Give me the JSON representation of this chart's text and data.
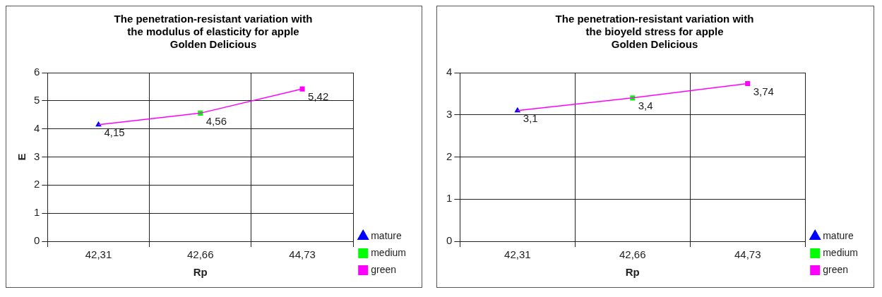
{
  "chart_data": [
    {
      "type": "line",
      "title": "The penetration-resistant variation with\nthe modulus of elasticity for apple\nGolden Delicious",
      "xlabel": "Rp",
      "ylabel": "E",
      "categories": [
        "42,31",
        "42,66",
        "44,73"
      ],
      "ylim": [
        0,
        6
      ],
      "yticks": [
        0,
        1,
        2,
        3,
        4,
        5,
        6
      ],
      "grid": true,
      "legend": "bottom right",
      "series": [
        {
          "type": "line",
          "color": "#ff00ff",
          "marker": "none",
          "values": [
            4.15,
            4.56,
            5.42
          ]
        },
        {
          "type": "scatter",
          "name": "mature",
          "color": "#0000ff",
          "marker": "triangle",
          "values": [
            4.15,
            null,
            null
          ],
          "value_labels": [
            "4,15",
            null,
            null
          ]
        },
        {
          "type": "scatter",
          "name": "medium",
          "color": "#00ff00",
          "marker": "square",
          "values": [
            null,
            4.56,
            null
          ],
          "value_labels": [
            null,
            "4,56",
            null
          ]
        },
        {
          "type": "scatter",
          "name": "green",
          "color": "#ff00ff",
          "marker": "square",
          "values": [
            null,
            null,
            5.42
          ],
          "value_labels": [
            null,
            null,
            "5,42"
          ]
        }
      ]
    },
    {
      "type": "line",
      "title": "The penetration-resistant variation with\nthe bioyeld stress for apple\nGolden Delicious",
      "xlabel": "Rp",
      "categories": [
        "42,31",
        "42,66",
        "44,73"
      ],
      "ylim": [
        0,
        4
      ],
      "yticks": [
        0,
        1,
        2,
        3,
        4
      ],
      "grid": true,
      "legend": "bottom right",
      "series": [
        {
          "type": "line",
          "color": "#ff00ff",
          "marker": "none",
          "values": [
            3.1,
            3.4,
            3.74
          ]
        },
        {
          "type": "scatter",
          "name": "mature",
          "color": "#0000ff",
          "marker": "triangle",
          "values": [
            3.1,
            null,
            null
          ],
          "value_labels": [
            "3,1",
            null,
            null
          ]
        },
        {
          "type": "scatter",
          "name": "medium",
          "color": "#00ff00",
          "marker": "square",
          "values": [
            null,
            3.4,
            null
          ],
          "value_labels": [
            null,
            "3,4",
            null
          ]
        },
        {
          "type": "scatter",
          "name": "green",
          "color": "#ff00ff",
          "marker": "square",
          "values": [
            null,
            null,
            3.74
          ],
          "value_labels": [
            null,
            null,
            "3,74"
          ]
        }
      ]
    }
  ]
}
